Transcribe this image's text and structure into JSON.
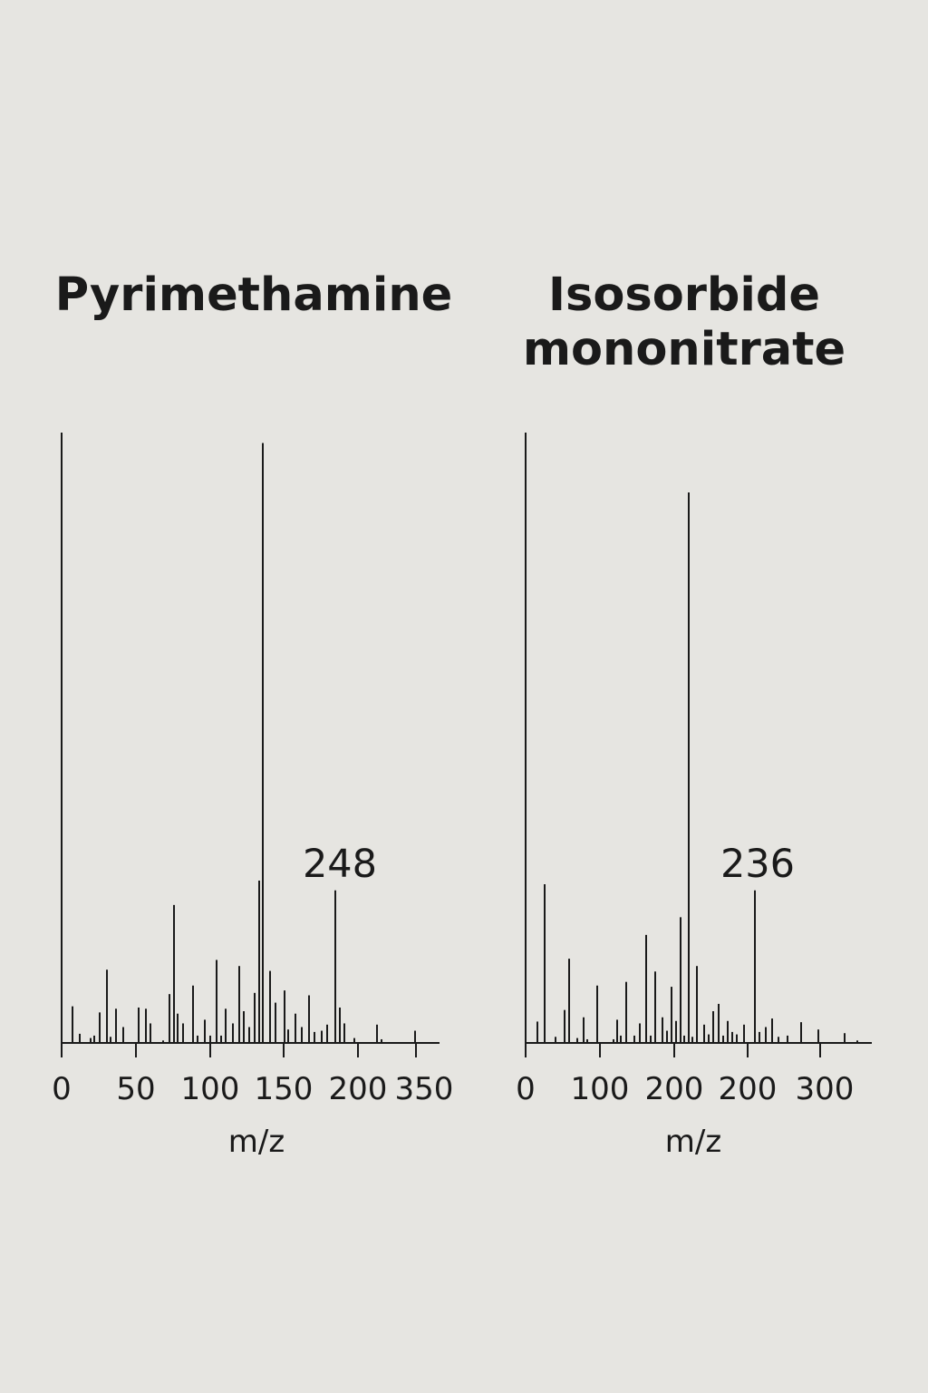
{
  "chart_data": [
    {
      "type": "bar",
      "title": "Pyrimethamine",
      "xlabel": "m/z",
      "ylabel": "",
      "x_tick_labels": [
        "0",
        "50",
        "100",
        "150",
        "200",
        "350"
      ],
      "annotation": "248",
      "ylim": [
        0,
        100
      ],
      "peaks_x_position": [
        0,
        5,
        9,
        13,
        17,
        20,
        25,
        28,
        32,
        39,
        46,
        53,
        57,
        60,
        61,
        73,
        76,
        79,
        85,
        95,
        100,
        110,
        107,
        115,
        120,
        126,
        131,
        138,
        141,
        145,
        149,
        152,
        156,
        162,
        165,
        170,
        175,
        179,
        182,
        186,
        190,
        195,
        199,
        205,
        215,
        230,
        239
      ],
      "peaks_label_mz": [
        "",
        "",
        "",
        "",
        "",
        "",
        "",
        "",
        "",
        "",
        "",
        "",
        "",
        "",
        "",
        "",
        "",
        "",
        "",
        "",
        "",
        "",
        "",
        "",
        "",
        "",
        "",
        "",
        "",
        "",
        "",
        "",
        "",
        "",
        "",
        "",
        "",
        "",
        "",
        "",
        "",
        "",
        "",
        "",
        "",
        "",
        ""
      ],
      "peaks_intensity": [
        100,
        6,
        1.5,
        0.5,
        0.8,
        5,
        8,
        1,
        6,
        3,
        6,
        6,
        3,
        1,
        8,
        18,
        5,
        3,
        9.5,
        4,
        1,
        13.5,
        1,
        6,
        3,
        12.5,
        5,
        8,
        24,
        97,
        12,
        7,
        9,
        4.5,
        5,
        8,
        2,
        21,
        6,
        3,
        2,
        1,
        1,
        3,
        2,
        0.7,
        2
      ]
    },
    {
      "type": "bar",
      "title": "Isosorbide mononitrate",
      "xlabel": "m/z",
      "ylabel": "",
      "x_tick_labels": [
        "0",
        "100",
        "200",
        "200",
        "300"
      ],
      "annotation": "236",
      "ylim": [
        0,
        100
      ]
    }
  ]
}
